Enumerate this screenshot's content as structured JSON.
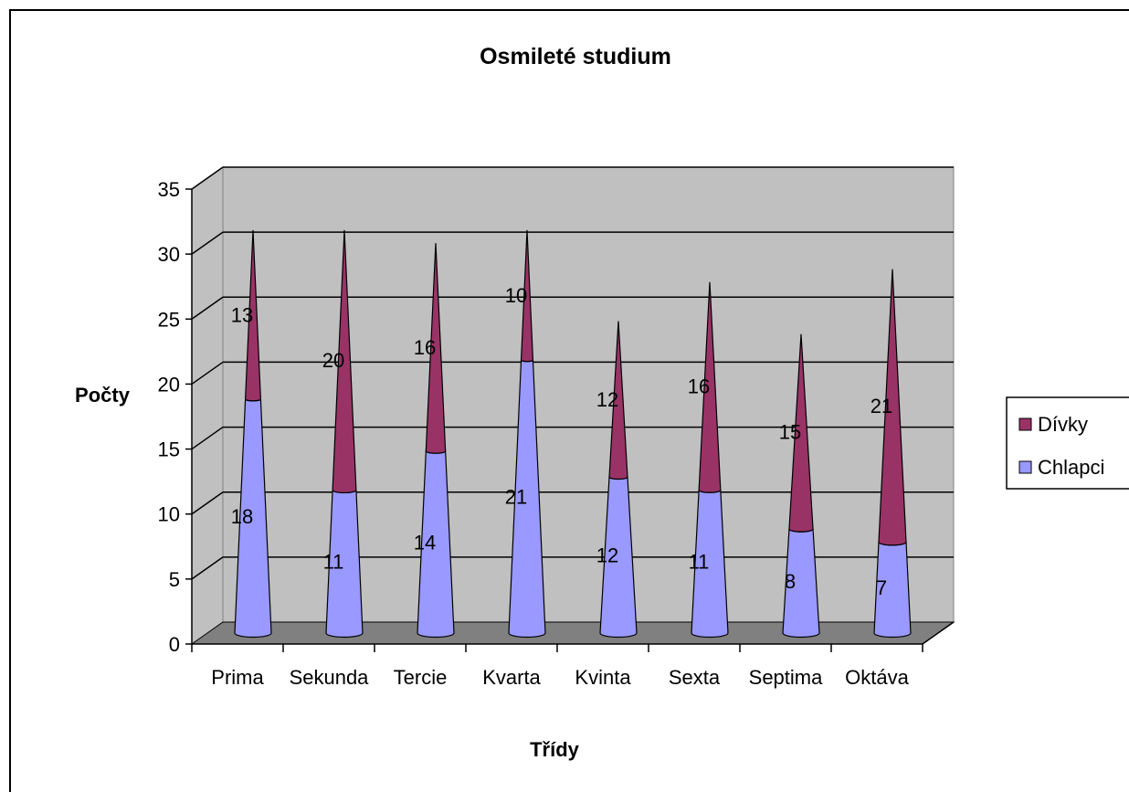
{
  "chart_data": {
    "type": "bar",
    "title": "Osmileté studium",
    "xlabel": "Třídy",
    "ylabel": "Počty",
    "ylim": [
      0,
      35
    ],
    "ytick_step": 5,
    "categories": [
      "Prima",
      "Sekunda",
      "Tercie",
      "Kvarta",
      "Kvinta",
      "Sexta",
      "Septima",
      "Oktáva"
    ],
    "stacked": true,
    "shape": "cone",
    "series": [
      {
        "name": "Chlapci",
        "color": "#9999FF",
        "values": [
          18,
          11,
          14,
          21,
          12,
          11,
          8,
          7
        ]
      },
      {
        "name": "Dívky",
        "color": "#993366",
        "values": [
          13,
          20,
          16,
          10,
          12,
          16,
          15,
          21
        ]
      }
    ],
    "legend_position": "right",
    "grid": true,
    "data_labels": true,
    "colors": {
      "plot_background": "#C0C0C0",
      "floor": "#808080",
      "grid": "#000000"
    }
  }
}
